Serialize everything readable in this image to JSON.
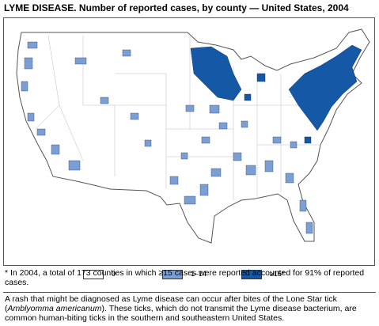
{
  "title": "LYME DISEASE. Number of reported cases, by county — United States, 2004",
  "legend": [
    {
      "label": "0",
      "color": "#ffffff"
    },
    {
      "label": "1–14",
      "color": "#7b9fd4"
    },
    {
      "label": "≥15*",
      "color": "#1458a6"
    }
  ],
  "footnote": "* In 2004, a total of 173 counties in which ≥15 cases were reported accounted for 91% of reported cases.",
  "note": [
    "A rash that might be diagnosed as Lyme disease can occur after bites of the Lone Star tick (",
    "Amblyomma americanum",
    "). These ticks, which do not transmit the Lyme disease bacterium, are common human-biting ticks in the southern and southeastern United States."
  ]
}
